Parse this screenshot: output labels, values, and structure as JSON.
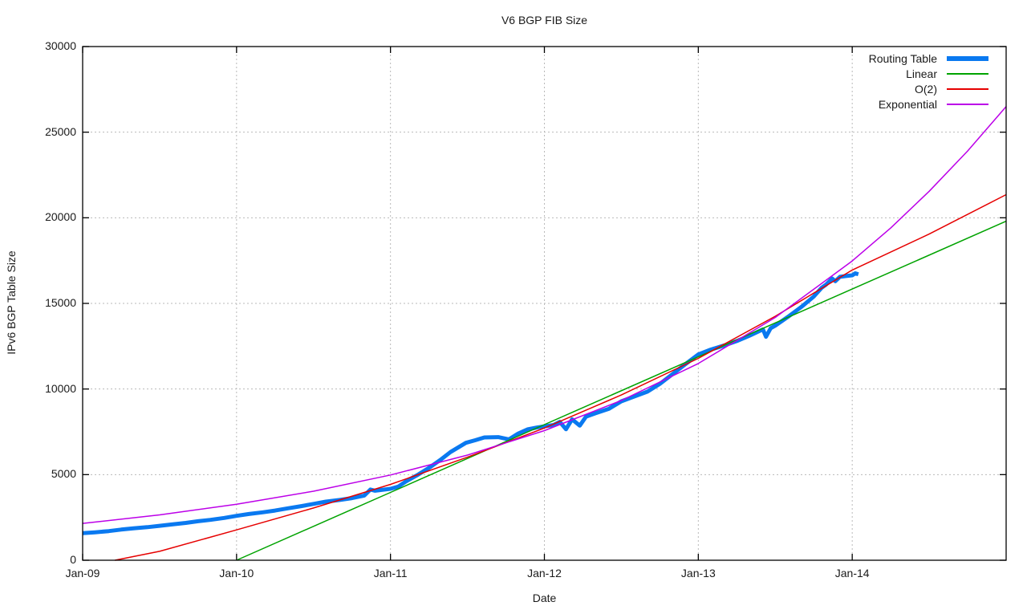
{
  "chart_data": {
    "type": "line",
    "title": "V6 BGP FIB Size",
    "xlabel": "Date",
    "ylabel": "IPv6 BGP Table Size",
    "x_range": [
      2009,
      2015
    ],
    "y_range": [
      0,
      30000
    ],
    "grid": true,
    "legend_position": "top-right-inside",
    "x_ticks": [
      {
        "value": 2009,
        "label": "Jan-09"
      },
      {
        "value": 2010,
        "label": "Jan-10"
      },
      {
        "value": 2011,
        "label": "Jan-11"
      },
      {
        "value": 2012,
        "label": "Jan-12"
      },
      {
        "value": 2013,
        "label": "Jan-13"
      },
      {
        "value": 2014,
        "label": "Jan-14"
      }
    ],
    "y_ticks": [
      {
        "value": 0,
        "label": "0"
      },
      {
        "value": 5000,
        "label": "5000"
      },
      {
        "value": 10000,
        "label": "10000"
      },
      {
        "value": 15000,
        "label": "15000"
      },
      {
        "value": 20000,
        "label": "20000"
      },
      {
        "value": 25000,
        "label": "25000"
      },
      {
        "value": 30000,
        "label": "30000"
      }
    ],
    "colors": {
      "axis": "#000000",
      "grid": "#b9b9b9",
      "text": "#1a1a1a",
      "routing_table": "#0a79f0",
      "linear": "#00a300",
      "o2": "#e60000",
      "exponential": "#bc00e8"
    },
    "series": [
      {
        "name": "Routing Table",
        "color": "#0a79f0",
        "stroke_width": 5,
        "points": [
          [
            2009.0,
            1580
          ],
          [
            2009.08,
            1630
          ],
          [
            2009.17,
            1700
          ],
          [
            2009.25,
            1790
          ],
          [
            2009.33,
            1860
          ],
          [
            2009.42,
            1930
          ],
          [
            2009.5,
            2010
          ],
          [
            2009.58,
            2090
          ],
          [
            2009.67,
            2180
          ],
          [
            2009.75,
            2280
          ],
          [
            2009.83,
            2360
          ],
          [
            2009.92,
            2470
          ],
          [
            2010.0,
            2590
          ],
          [
            2010.08,
            2700
          ],
          [
            2010.17,
            2800
          ],
          [
            2010.25,
            2900
          ],
          [
            2010.33,
            3030
          ],
          [
            2010.42,
            3160
          ],
          [
            2010.5,
            3290
          ],
          [
            2010.58,
            3420
          ],
          [
            2010.67,
            3520
          ],
          [
            2010.75,
            3630
          ],
          [
            2010.83,
            3780
          ],
          [
            2010.87,
            4130
          ],
          [
            2010.9,
            4060
          ],
          [
            2011.0,
            4170
          ],
          [
            2011.05,
            4300
          ],
          [
            2011.1,
            4600
          ],
          [
            2011.18,
            5000
          ],
          [
            2011.26,
            5450
          ],
          [
            2011.33,
            5900
          ],
          [
            2011.39,
            6320
          ],
          [
            2011.49,
            6860
          ],
          [
            2011.55,
            7010
          ],
          [
            2011.61,
            7170
          ],
          [
            2011.7,
            7190
          ],
          [
            2011.77,
            7060
          ],
          [
            2011.83,
            7400
          ],
          [
            2011.89,
            7640
          ],
          [
            2011.95,
            7750
          ],
          [
            2012.0,
            7820
          ],
          [
            2012.06,
            7900
          ],
          [
            2012.1,
            8080
          ],
          [
            2012.14,
            7650
          ],
          [
            2012.18,
            8230
          ],
          [
            2012.23,
            7860
          ],
          [
            2012.27,
            8380
          ],
          [
            2012.33,
            8580
          ],
          [
            2012.42,
            8850
          ],
          [
            2012.5,
            9280
          ],
          [
            2012.58,
            9550
          ],
          [
            2012.67,
            9850
          ],
          [
            2012.75,
            10300
          ],
          [
            2012.83,
            10850
          ],
          [
            2012.92,
            11480
          ],
          [
            2013.0,
            12020
          ],
          [
            2013.08,
            12300
          ],
          [
            2013.17,
            12550
          ],
          [
            2013.25,
            12800
          ],
          [
            2013.33,
            13100
          ],
          [
            2013.42,
            13480
          ],
          [
            2013.44,
            13050
          ],
          [
            2013.47,
            13550
          ],
          [
            2013.5,
            13700
          ],
          [
            2013.58,
            14200
          ],
          [
            2013.67,
            14800
          ],
          [
            2013.75,
            15400
          ],
          [
            2013.8,
            15900
          ],
          [
            2013.83,
            16100
          ],
          [
            2013.87,
            16450
          ],
          [
            2013.89,
            16300
          ],
          [
            2013.92,
            16550
          ],
          [
            2013.96,
            16600
          ],
          [
            2014.0,
            16640
          ],
          [
            2014.02,
            16760
          ],
          [
            2014.04,
            16700
          ]
        ]
      },
      {
        "name": "Linear",
        "color": "#00a300",
        "stroke_width": 1.5,
        "points": [
          [
            2010.0,
            0
          ],
          [
            2011.0,
            3960
          ],
          [
            2012.0,
            7920
          ],
          [
            2013.0,
            11880
          ],
          [
            2014.0,
            15840
          ],
          [
            2015.0,
            19800
          ]
        ]
      },
      {
        "name": "O(2)",
        "color": "#e60000",
        "stroke_width": 1.5,
        "points": [
          [
            2009.21,
            0
          ],
          [
            2009.5,
            520
          ],
          [
            2010.0,
            1770
          ],
          [
            2010.5,
            3050
          ],
          [
            2011.0,
            4430
          ],
          [
            2011.5,
            6020
          ],
          [
            2012.0,
            7720
          ],
          [
            2012.5,
            9650
          ],
          [
            2013.0,
            11790
          ],
          [
            2013.5,
            14250
          ],
          [
            2014.0,
            16950
          ],
          [
            2014.5,
            19050
          ],
          [
            2015.0,
            21350
          ]
        ]
      },
      {
        "name": "Exponential",
        "color": "#bc00e8",
        "stroke_width": 1.5,
        "points": [
          [
            2009.0,
            2150
          ],
          [
            2009.5,
            2650
          ],
          [
            2010.0,
            3270
          ],
          [
            2010.5,
            4030
          ],
          [
            2011.0,
            4980
          ],
          [
            2011.5,
            6140
          ],
          [
            2012.0,
            7570
          ],
          [
            2012.5,
            9330
          ],
          [
            2013.0,
            11490
          ],
          [
            2013.5,
            14180
          ],
          [
            2014.0,
            17480
          ],
          [
            2014.25,
            19400
          ],
          [
            2014.5,
            21550
          ],
          [
            2014.75,
            23900
          ],
          [
            2015.0,
            26500
          ]
        ]
      }
    ]
  }
}
